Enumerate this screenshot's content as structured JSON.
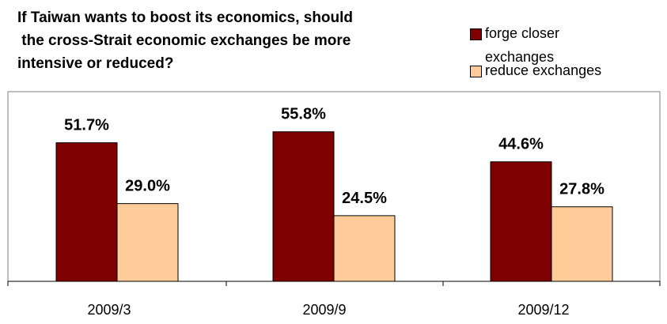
{
  "chart_data": {
    "type": "bar",
    "title_lines": [
      "If Taiwan wants to boost its economics, should",
      " the cross-Strait economic exchanges be more",
      "intensive or reduced?"
    ],
    "categories": [
      "2009/3",
      "2009/9",
      "2009/12"
    ],
    "series": [
      {
        "name": "forge closer exchanges",
        "legend_lines": [
          "forge closer",
          "exchanges"
        ],
        "values": [
          51.7,
          55.8,
          44.6
        ],
        "color": "#7f0000"
      },
      {
        "name": "reduce exchanges",
        "legend_lines": [
          "reduce exchanges"
        ],
        "values": [
          29.0,
          24.5,
          27.8
        ],
        "color": "#ffcc99"
      }
    ],
    "value_suffix": "%",
    "ylim": [
      0,
      60
    ],
    "grid": false,
    "legend_position": "top-right"
  }
}
